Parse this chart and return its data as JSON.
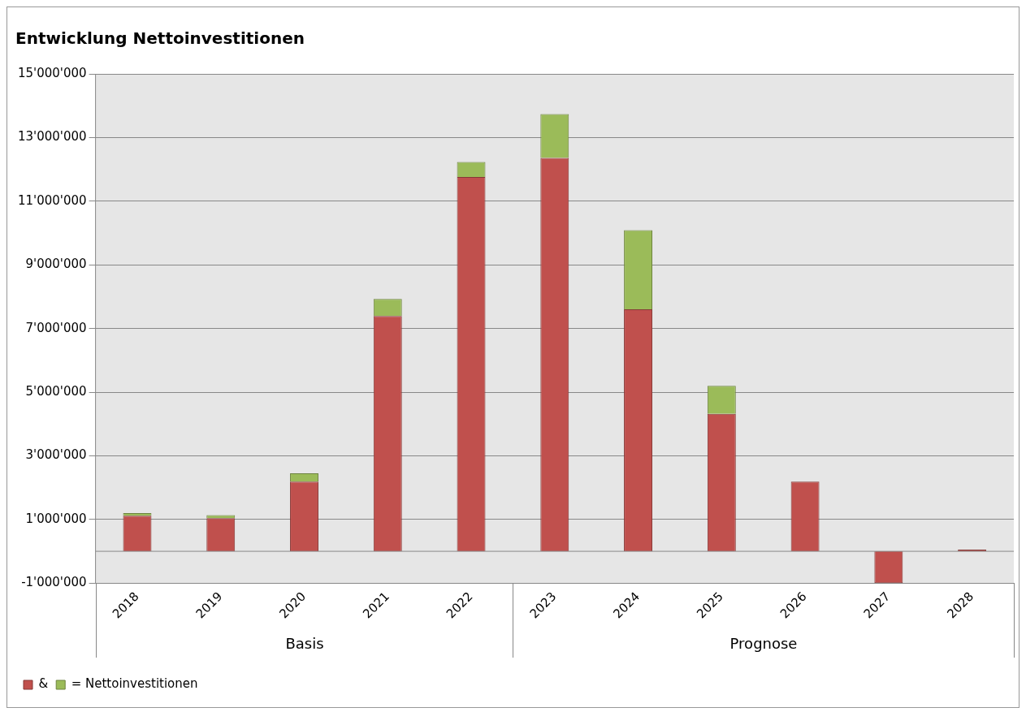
{
  "chart_data": {
    "type": "bar",
    "title": "Entwicklung Nettoinvestitionen",
    "categories": [
      "2018",
      "2019",
      "2020",
      "2021",
      "2022",
      "2023",
      "2024",
      "2025",
      "2026",
      "2027",
      "2028"
    ],
    "stacked": true,
    "series": [
      {
        "name": "&",
        "color": "#c0504d",
        "values": [
          1120000,
          1040000,
          2190000,
          7390000,
          11760000,
          12360000,
          7600000,
          4320000,
          2190000,
          -1000000,
          50000
        ]
      },
      {
        "name": "= Nettoinvestitionen",
        "color": "#9bbb59",
        "values": [
          80000,
          100000,
          260000,
          540000,
          470000,
          1380000,
          2490000,
          880000,
          null,
          null,
          null
        ]
      }
    ],
    "ylim": [
      -1000000,
      15000000
    ],
    "yticks": [
      {
        "value": -1000000,
        "label": "-1'000'000"
      },
      {
        "value": 1000000,
        "label": "1'000'000"
      },
      {
        "value": 3000000,
        "label": "3'000'000"
      },
      {
        "value": 5000000,
        "label": "5'000'000"
      },
      {
        "value": 7000000,
        "label": "7'000'000"
      },
      {
        "value": 9000000,
        "label": "9'000'000"
      },
      {
        "value": 11000000,
        "label": "11'000'000"
      },
      {
        "value": 13000000,
        "label": "13'000'000"
      },
      {
        "value": 15000000,
        "label": "15'000'000"
      }
    ],
    "grid": "y",
    "legend": "bottom left",
    "annotations": [
      "Basis",
      "Prognose"
    ]
  }
}
